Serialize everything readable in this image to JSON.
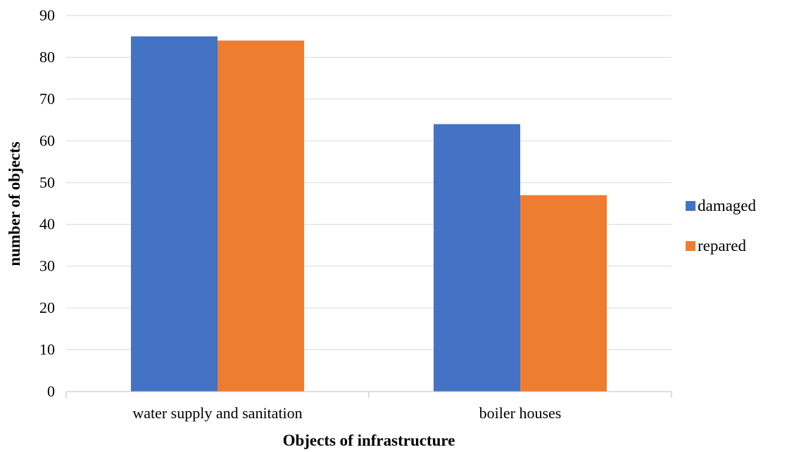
{
  "chart_data": {
    "type": "bar",
    "categories": [
      "water supply and sanitation",
      "boiler houses"
    ],
    "series": [
      {
        "name": "damaged",
        "values": [
          85,
          64
        ],
        "color": "#4472C4"
      },
      {
        "name": "repared",
        "values": [
          84,
          47
        ],
        "color": "#ED7D31"
      }
    ],
    "xlabel": "Objects of infrastructure",
    "ylabel": "number of objects",
    "ylim": [
      0,
      90
    ],
    "yticks": [
      0,
      10,
      20,
      30,
      40,
      50,
      60,
      70,
      80,
      90
    ],
    "grid": true,
    "legend_position": "right"
  }
}
